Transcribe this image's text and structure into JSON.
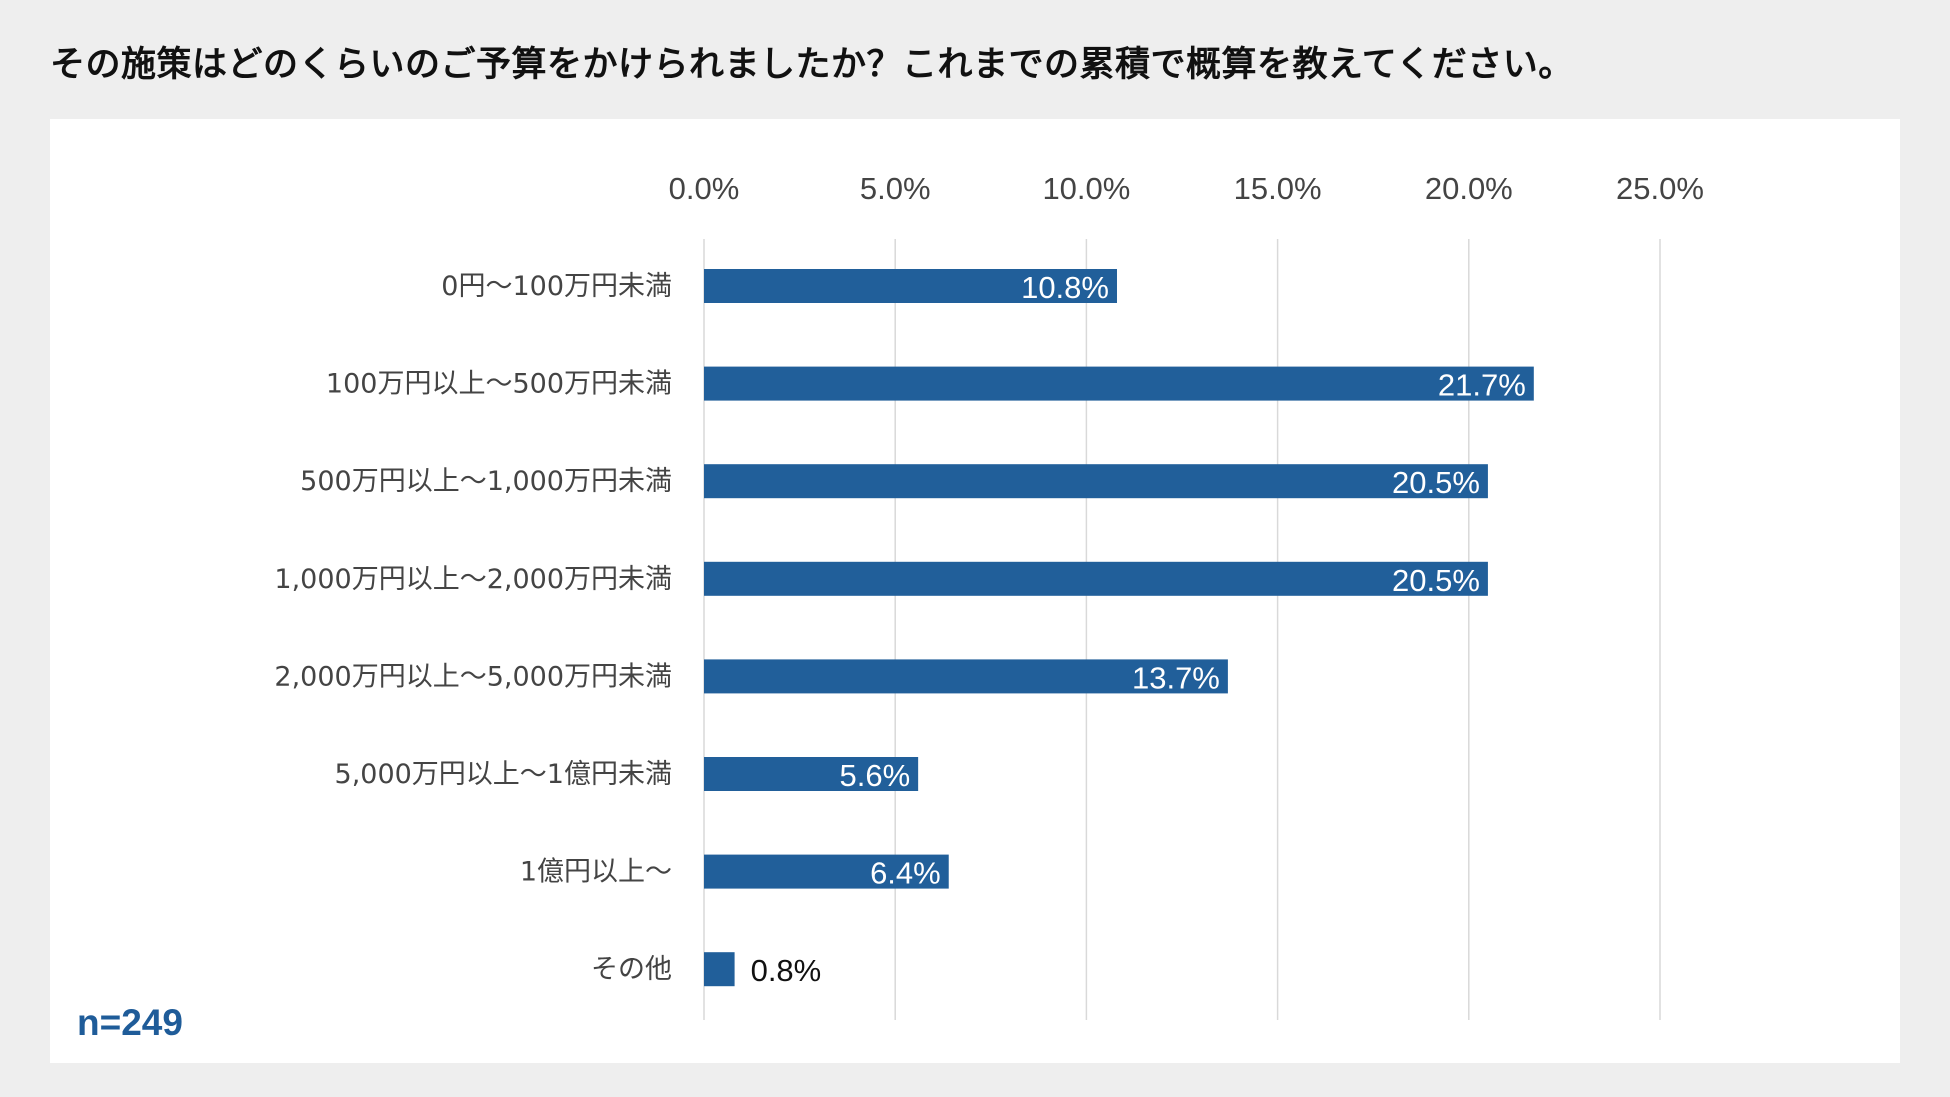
{
  "title": "その施策はどのくらいのご予算をかけられましたか？これまでの累積で概算を教えてください。",
  "sample_size": "n=249",
  "colors": {
    "bar": "#215f9a",
    "grid": "#d9d9d9",
    "background": "#eeeeee"
  },
  "chart_data": {
    "type": "bar",
    "orientation": "horizontal",
    "categories": [
      "0円〜100万円未満",
      "100万円以上〜500万円未満",
      "500万円以上〜1,000万円未満",
      "1,000万円以上〜2,000万円未満",
      "2,000万円以上〜5,000万円未満",
      "5,000万円以上〜1億円未満",
      "1億円以上〜",
      "その他"
    ],
    "values": [
      10.8,
      21.7,
      20.5,
      20.5,
      13.7,
      5.6,
      6.4,
      0.8
    ],
    "data_labels": [
      "10.8%",
      "21.7%",
      "20.5%",
      "20.5%",
      "13.7%",
      "5.6%",
      "6.4%",
      "0.8%"
    ],
    "xlim": [
      0,
      25
    ],
    "x_ticks": [
      "0.0%",
      "5.0%",
      "10.0%",
      "15.0%",
      "20.0%",
      "25.0%"
    ],
    "x_tick_values": [
      0,
      5,
      10,
      15,
      20,
      25
    ],
    "axis_position": "top",
    "grid": true,
    "legend": "none"
  }
}
